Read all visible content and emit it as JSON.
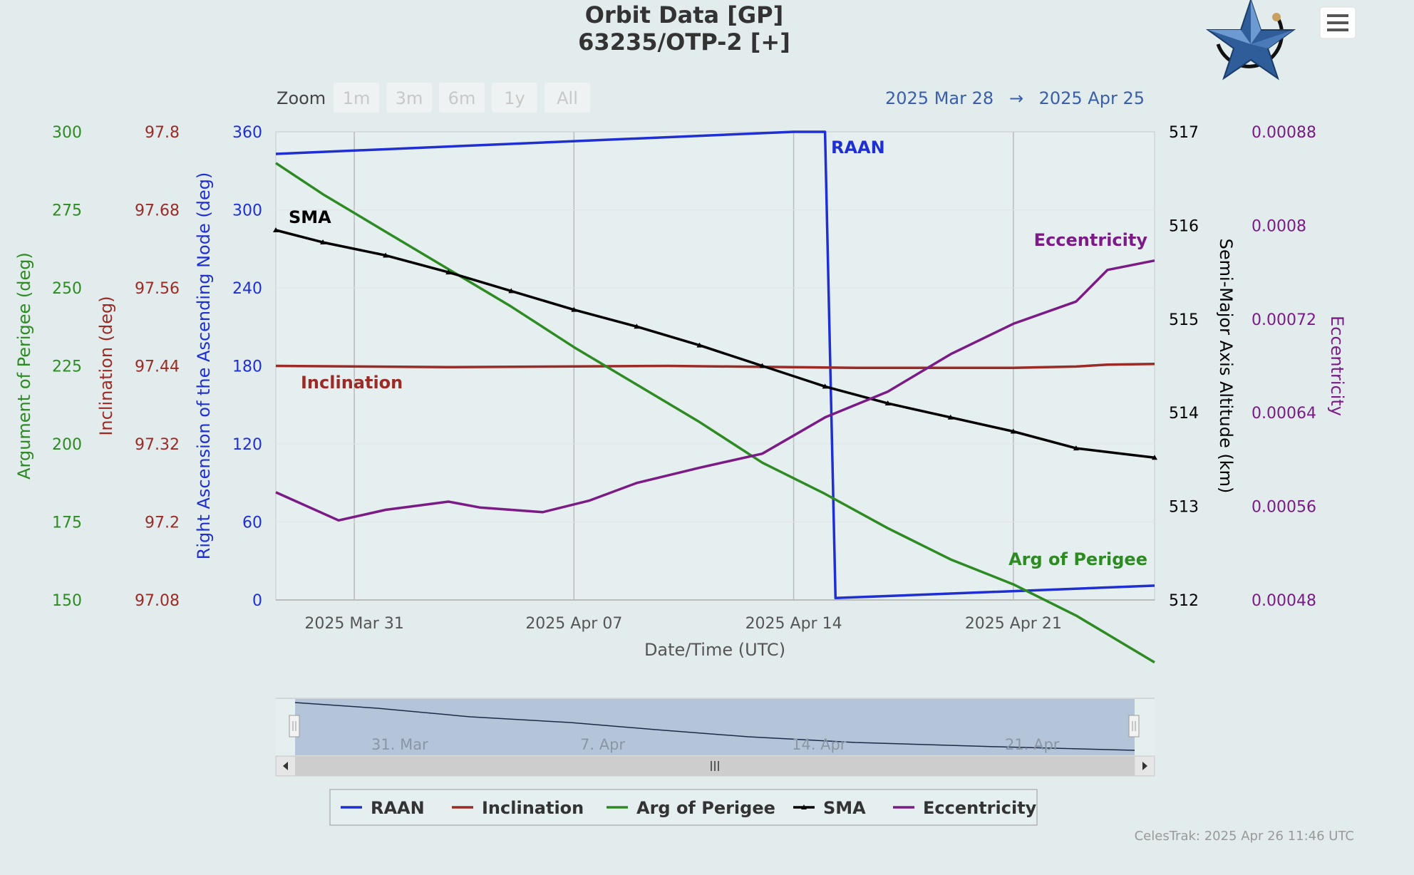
{
  "title_line1": "Orbit Data [GP]",
  "title_line2": "63235/OTP-2 [+]",
  "zoom": {
    "label": "Zoom",
    "buttons": [
      "1m",
      "3m",
      "6m",
      "1y",
      "All"
    ]
  },
  "range": {
    "from": "2025 Mar 28",
    "arrow": "→",
    "to": "2025 Apr 25"
  },
  "credit": "CelesTrak: 2025 Apr 26 11:46 UTC",
  "menu_icon": "hamburger-menu-icon",
  "logo_icon": "blue-star-logo-icon",
  "colors": {
    "raan": "#1f2fd1",
    "inclination": "#9b2b26",
    "argp": "#2e8a22",
    "sma": "#000000",
    "ecc": "#7a1b86"
  },
  "chart_data": {
    "type": "line",
    "x_range": [
      "2025-03-28 12:00",
      "2025-04-25 12:00"
    ],
    "xlabel": "Date/Time (UTC)",
    "x_ticks": [
      "2025 Mar 31",
      "2025 Apr 07",
      "2025 Apr 14",
      "2025 Apr 21"
    ],
    "grid": true,
    "legend_placement": "bottom-center",
    "axes": {
      "argp": {
        "title": "Argument of Perigee (deg)",
        "range": [
          150,
          300
        ],
        "ticks": [
          "150",
          "175",
          "200",
          "225",
          "250",
          "275",
          "300"
        ]
      },
      "inclination": {
        "title": "Inclination (deg)",
        "range": [
          97.08,
          97.8
        ],
        "ticks": [
          "97.08",
          "97.2",
          "97.32",
          "97.44",
          "97.56",
          "97.68",
          "97.8"
        ]
      },
      "raan": {
        "title": "Right Ascension of the Ascending Node (deg)",
        "range": [
          0,
          360
        ],
        "ticks": [
          "0",
          "60",
          "120",
          "180",
          "240",
          "300",
          "360"
        ]
      },
      "sma": {
        "title": "Semi-Major Axis Altitude (km)",
        "range": [
          512,
          517
        ],
        "ticks": [
          "512",
          "513",
          "514",
          "515",
          "516",
          "517"
        ]
      },
      "ecc": {
        "title": "Eccentricity",
        "range": [
          0.00048,
          0.00088
        ],
        "ticks": [
          "0.00048",
          "0.00056",
          "0.00064",
          "0.00072",
          "0.0008",
          "0.00088"
        ]
      }
    },
    "series": [
      {
        "key": "raan",
        "name": "RAAN",
        "x": [
          "2025-03-28 12:00",
          "2025-04-14 00:00",
          "2025-04-15 00:00",
          "2025-04-15 08:00",
          "2025-04-25 12:00"
        ],
        "values": [
          343,
          360,
          360,
          1.5,
          11
        ]
      },
      {
        "key": "inclination",
        "name": "Inclination",
        "x": [
          "2025-03-28 12:00",
          "2025-04-03 00:00",
          "2025-04-10 00:00",
          "2025-04-16 00:00",
          "2025-04-21 00:00",
          "2025-04-23 00:00",
          "2025-04-24 00:00",
          "2025-04-25 12:00"
        ],
        "values": [
          97.44,
          97.438,
          97.44,
          97.437,
          97.437,
          97.439,
          97.442,
          97.443
        ]
      },
      {
        "key": "argp",
        "name": "Arg of Perigee",
        "x": [
          "2025-03-28 12:00",
          "2025-03-30 00:00",
          "2025-04-01 00:00",
          "2025-04-03 00:00",
          "2025-04-05 00:00",
          "2025-04-07 00:00",
          "2025-04-09 00:00",
          "2025-04-11 00:00",
          "2025-04-13 00:00",
          "2025-04-15 00:00",
          "2025-04-17 00:00",
          "2025-04-19 00:00",
          "2025-04-21 00:00",
          "2025-04-23 00:00",
          "2025-04-25 12:00"
        ],
        "values": [
          290,
          280,
          268,
          256,
          244,
          231,
          219,
          207,
          194,
          184,
          173,
          163,
          155,
          145,
          130
        ]
      },
      {
        "key": "sma",
        "name": "SMA",
        "x": [
          "2025-03-28 12:00",
          "2025-03-30 00:00",
          "2025-04-01 00:00",
          "2025-04-03 00:00",
          "2025-04-05 00:00",
          "2025-04-07 00:00",
          "2025-04-09 00:00",
          "2025-04-11 00:00",
          "2025-04-13 00:00",
          "2025-04-15 00:00",
          "2025-04-17 00:00",
          "2025-04-19 00:00",
          "2025-04-21 00:00",
          "2025-04-23 00:00",
          "2025-04-25 12:00"
        ],
        "values": [
          515.95,
          515.82,
          515.68,
          515.5,
          515.3,
          515.1,
          514.92,
          514.72,
          514.5,
          514.28,
          514.1,
          513.95,
          513.8,
          513.62,
          513.52
        ]
      },
      {
        "key": "ecc",
        "name": "Eccentricity",
        "x": [
          "2025-03-28 12:00",
          "2025-03-30 12:00",
          "2025-04-01 00:00",
          "2025-04-03 00:00",
          "2025-04-04 00:00",
          "2025-04-06 00:00",
          "2025-04-07 12:00",
          "2025-04-09 00:00",
          "2025-04-11 00:00",
          "2025-04-13 00:00",
          "2025-04-15 00:00",
          "2025-04-17 00:00",
          "2025-04-19 00:00",
          "2025-04-21 00:00",
          "2025-04-23 00:00",
          "2025-04-24 00:00",
          "2025-04-25 12:00"
        ],
        "values": [
          0.000572,
          0.000548,
          0.000557,
          0.000564,
          0.000559,
          0.000555,
          0.000565,
          0.00058,
          0.000593,
          0.000605,
          0.000636,
          0.000658,
          0.00069,
          0.000716,
          0.000735,
          0.000762,
          0.00077
        ]
      }
    ]
  }
}
